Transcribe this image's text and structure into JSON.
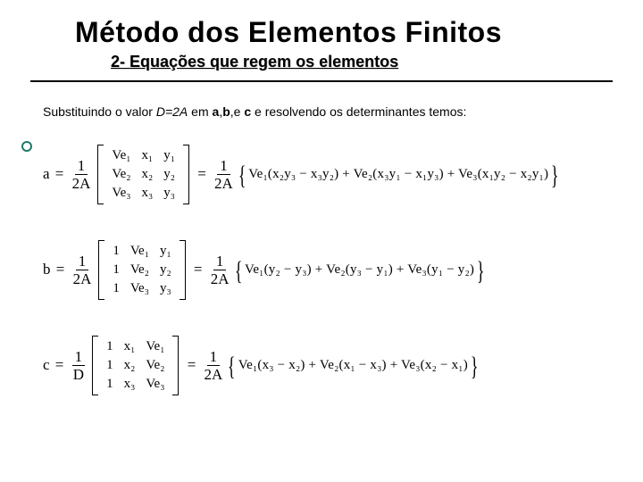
{
  "header": {
    "title": "Método dos Elementos Finitos",
    "subtitle": "2- Equações que regem os elementos"
  },
  "body": {
    "intro_pre": "Substituindo o valor ",
    "intro_ital": "D=2A",
    "intro_mid": " em ",
    "intro_vars_a": "a",
    "intro_sep1": ",",
    "intro_vars_b": "b",
    "intro_sep2": ",e ",
    "intro_vars_c": "c",
    "intro_post": " e resolvendo os determinantes temos:"
  },
  "equations": {
    "a": {
      "lhs": "a",
      "frac_num": "1",
      "frac_den": "2A",
      "matrix": [
        [
          "Ve₁",
          "x₁",
          "y₁"
        ],
        [
          "Ve₂",
          "x₂",
          "y₂"
        ],
        [
          "Ve₃",
          "x₃",
          "y₃"
        ]
      ],
      "expansion": "Ve₁(x₂y₃ − x₃y₂) + Ve₂(x₃y₁ − x₁y₃) + Ve₃(x₁y₂ − x₂y₁)"
    },
    "b": {
      "lhs": "b",
      "frac_num": "1",
      "frac_den": "2A",
      "matrix": [
        [
          "1",
          "Ve₁",
          "y₁"
        ],
        [
          "1",
          "Ve₂",
          "y₂"
        ],
        [
          "1",
          "Ve₃",
          "y₃"
        ]
      ],
      "expansion": "Ve₁(y₂ − y₃) + Ve₂(y₃ − y₁) + Ve₃(y₁ − y₂)"
    },
    "c": {
      "lhs": "c",
      "frac_num": "1",
      "frac_den": "D",
      "frac2_num": "1",
      "frac2_den": "2A",
      "matrix": [
        [
          "1",
          "x₁",
          "Ve₁"
        ],
        [
          "1",
          "x₂",
          "Ve₂"
        ],
        [
          "1",
          "x₃",
          "Ve₃"
        ]
      ],
      "expansion": "Ve₁(x₃ − x₂) + Ve₂(x₁ − x₃) + Ve₃(x₂ − x₁)"
    }
  },
  "style": {
    "title_fontsize": 32,
    "subtitle_fontsize": 18,
    "body_fontsize": 14,
    "eq_fontsize": 17,
    "accent_color": "#1f7a6b",
    "text_color": "#000000",
    "background_color": "#ffffff"
  }
}
